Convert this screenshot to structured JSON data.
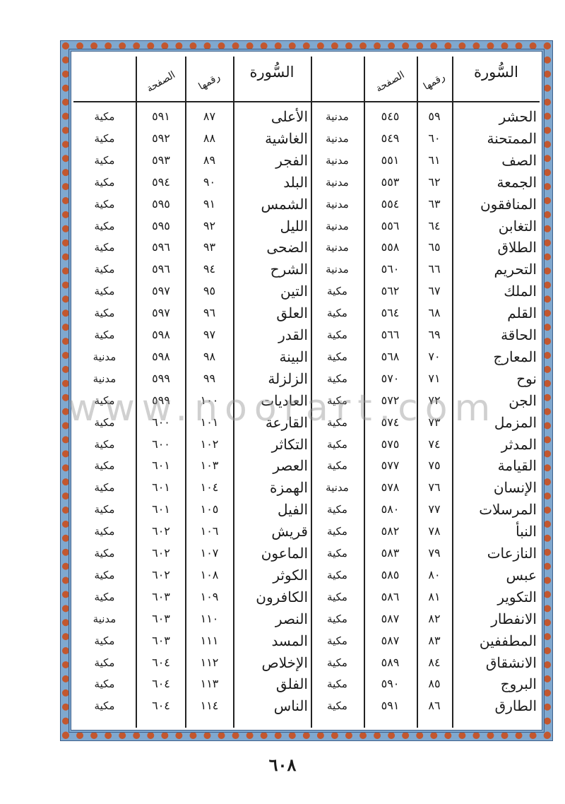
{
  "headers": {
    "surah": "السُّورة",
    "number": "رقمها",
    "page": "الصفحة"
  },
  "right_table": [
    {
      "name": "الحشر",
      "number": "٥٩",
      "page": "٥٤٥",
      "type": "مدنية"
    },
    {
      "name": "الممتحنة",
      "number": "٦٠",
      "page": "٥٤٩",
      "type": "مدنية"
    },
    {
      "name": "الصف",
      "number": "٦١",
      "page": "٥٥١",
      "type": "مدنية"
    },
    {
      "name": "الجمعة",
      "number": "٦٢",
      "page": "٥٥٣",
      "type": "مدنية"
    },
    {
      "name": "المنافقون",
      "number": "٦٣",
      "page": "٥٥٤",
      "type": "مدنية"
    },
    {
      "name": "التغابن",
      "number": "٦٤",
      "page": "٥٥٦",
      "type": "مدنية"
    },
    {
      "name": "الطلاق",
      "number": "٦٥",
      "page": "٥٥٨",
      "type": "مدنية"
    },
    {
      "name": "التحريم",
      "number": "٦٦",
      "page": "٥٦٠",
      "type": "مدنية"
    },
    {
      "name": "الملك",
      "number": "٦٧",
      "page": "٥٦٢",
      "type": "مكية"
    },
    {
      "name": "القلم",
      "number": "٦٨",
      "page": "٥٦٤",
      "type": "مكية"
    },
    {
      "name": "الحاقة",
      "number": "٦٩",
      "page": "٥٦٦",
      "type": "مكية"
    },
    {
      "name": "المعارج",
      "number": "٧٠",
      "page": "٥٦٨",
      "type": "مكية"
    },
    {
      "name": "نوح",
      "number": "٧١",
      "page": "٥٧٠",
      "type": "مكية"
    },
    {
      "name": "الجن",
      "number": "٧٢",
      "page": "٥٧٢",
      "type": "مكية"
    },
    {
      "name": "المزمل",
      "number": "٧٣",
      "page": "٥٧٤",
      "type": "مكية"
    },
    {
      "name": "المدثر",
      "number": "٧٤",
      "page": "٥٧٥",
      "type": "مكية"
    },
    {
      "name": "القيامة",
      "number": "٧٥",
      "page": "٥٧٧",
      "type": "مكية"
    },
    {
      "name": "الإنسان",
      "number": "٧٦",
      "page": "٥٧٨",
      "type": "مدنية"
    },
    {
      "name": "المرسلات",
      "number": "٧٧",
      "page": "٥٨٠",
      "type": "مكية"
    },
    {
      "name": "النبأ",
      "number": "٧٨",
      "page": "٥٨٢",
      "type": "مكية"
    },
    {
      "name": "النازعات",
      "number": "٧٩",
      "page": "٥٨٣",
      "type": "مكية"
    },
    {
      "name": "عبس",
      "number": "٨٠",
      "page": "٥٨٥",
      "type": "مكية"
    },
    {
      "name": "التكوير",
      "number": "٨١",
      "page": "٥٨٦",
      "type": "مكية"
    },
    {
      "name": "الانفطار",
      "number": "٨٢",
      "page": "٥٨٧",
      "type": "مكية"
    },
    {
      "name": "المطففين",
      "number": "٨٣",
      "page": "٥٨٧",
      "type": "مكية"
    },
    {
      "name": "الانشقاق",
      "number": "٨٤",
      "page": "٥٨٩",
      "type": "مكية"
    },
    {
      "name": "البروج",
      "number": "٨٥",
      "page": "٥٩٠",
      "type": "مكية"
    },
    {
      "name": "الطارق",
      "number": "٨٦",
      "page": "٥٩١",
      "type": "مكية"
    }
  ],
  "left_table": [
    {
      "name": "الأعلى",
      "number": "٨٧",
      "page": "٥٩١",
      "type": "مكية"
    },
    {
      "name": "الغاشية",
      "number": "٨٨",
      "page": "٥٩٢",
      "type": "مكية"
    },
    {
      "name": "الفجر",
      "number": "٨٩",
      "page": "٥٩٣",
      "type": "مكية"
    },
    {
      "name": "البلد",
      "number": "٩٠",
      "page": "٥٩٤",
      "type": "مكية"
    },
    {
      "name": "الشمس",
      "number": "٩١",
      "page": "٥٩٥",
      "type": "مكية"
    },
    {
      "name": "الليل",
      "number": "٩٢",
      "page": "٥٩٥",
      "type": "مكية"
    },
    {
      "name": "الضحى",
      "number": "٩٣",
      "page": "٥٩٦",
      "type": "مكية"
    },
    {
      "name": "الشرح",
      "number": "٩٤",
      "page": "٥٩٦",
      "type": "مكية"
    },
    {
      "name": "التين",
      "number": "٩٥",
      "page": "٥٩٧",
      "type": "مكية"
    },
    {
      "name": "العلق",
      "number": "٩٦",
      "page": "٥٩٧",
      "type": "مكية"
    },
    {
      "name": "القدر",
      "number": "٩٧",
      "page": "٥٩٨",
      "type": "مكية"
    },
    {
      "name": "البينة",
      "number": "٩٨",
      "page": "٥٩٨",
      "type": "مدنية"
    },
    {
      "name": "الزلزلة",
      "number": "٩٩",
      "page": "٥٩٩",
      "type": "مدنية"
    },
    {
      "name": "العاديات",
      "number": "١٠٠",
      "page": "٥٩٩",
      "type": "مكية"
    },
    {
      "name": "القارعة",
      "number": "١٠١",
      "page": "٦٠٠",
      "type": "مكية"
    },
    {
      "name": "التكاثر",
      "number": "١٠٢",
      "page": "٦٠٠",
      "type": "مكية"
    },
    {
      "name": "العصر",
      "number": "١٠٣",
      "page": "٦٠١",
      "type": "مكية"
    },
    {
      "name": "الهمزة",
      "number": "١٠٤",
      "page": "٦٠١",
      "type": "مكية"
    },
    {
      "name": "الفيل",
      "number": "١٠٥",
      "page": "٦٠١",
      "type": "مكية"
    },
    {
      "name": "قريش",
      "number": "١٠٦",
      "page": "٦٠٢",
      "type": "مكية"
    },
    {
      "name": "الماعون",
      "number": "١٠٧",
      "page": "٦٠٢",
      "type": "مكية"
    },
    {
      "name": "الكوثر",
      "number": "١٠٨",
      "page": "٦٠٢",
      "type": "مكية"
    },
    {
      "name": "الكافرون",
      "number": "١٠٩",
      "page": "٦٠٣",
      "type": "مكية"
    },
    {
      "name": "النصر",
      "number": "١١٠",
      "page": "٦٠٣",
      "type": "مدنية"
    },
    {
      "name": "المسد",
      "number": "١١١",
      "page": "٦٠٣",
      "type": "مكية"
    },
    {
      "name": "الإخلاص",
      "number": "١١٢",
      "page": "٦٠٤",
      "type": "مكية"
    },
    {
      "name": "الفلق",
      "number": "١١٣",
      "page": "٦٠٤",
      "type": "مكية"
    },
    {
      "name": "الناس",
      "number": "١١٤",
      "page": "٦٠٤",
      "type": "مكية"
    }
  ],
  "watermark": "www.noorart.com",
  "page_number": "٦٠٨",
  "colors": {
    "frame_blue": "#7fa8cf",
    "frame_red": "#c2572f"
  }
}
